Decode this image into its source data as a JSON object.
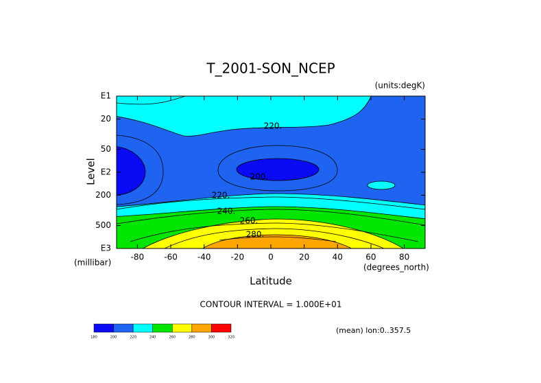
{
  "chart_data": {
    "type": "contour",
    "title": "T_2001-SON_NCEP",
    "units": "(units:degK)",
    "x_label": "Latitude",
    "x_units": "(degrees_north)",
    "y_label": "Level",
    "y_units": "(millibar)",
    "y_scale": "log",
    "xlim": [
      -92.5,
      92.5
    ],
    "xticks": [
      -80,
      -60,
      -40,
      -20,
      0,
      20,
      40,
      60,
      80
    ],
    "ylim": [
      10,
      1000
    ],
    "yticks": [
      {
        "value": 10,
        "label": "E1"
      },
      20,
      50,
      {
        "value": 100,
        "label": "E2"
      },
      200,
      500,
      {
        "value": 1000,
        "label": "E3"
      }
    ],
    "levels": [
      180,
      200,
      220,
      240,
      260,
      280,
      300,
      320
    ],
    "colors": [
      "#0a0af5",
      "#1e64f0",
      "#00ffff",
      "#00e600",
      "#ffff00",
      "#ffa500",
      "#ff0000"
    ],
    "contour_labels": {
      "values": [
        220,
        200,
        220,
        240,
        260,
        280
      ],
      "value_labels": [
        "220.",
        "200.",
        "220.",
        "240.",
        "260.",
        "280."
      ]
    },
    "contour_interval": "CONTOUR INTERVAL = 1.000E+01",
    "footnote": "(mean) lon:0..357.5"
  }
}
